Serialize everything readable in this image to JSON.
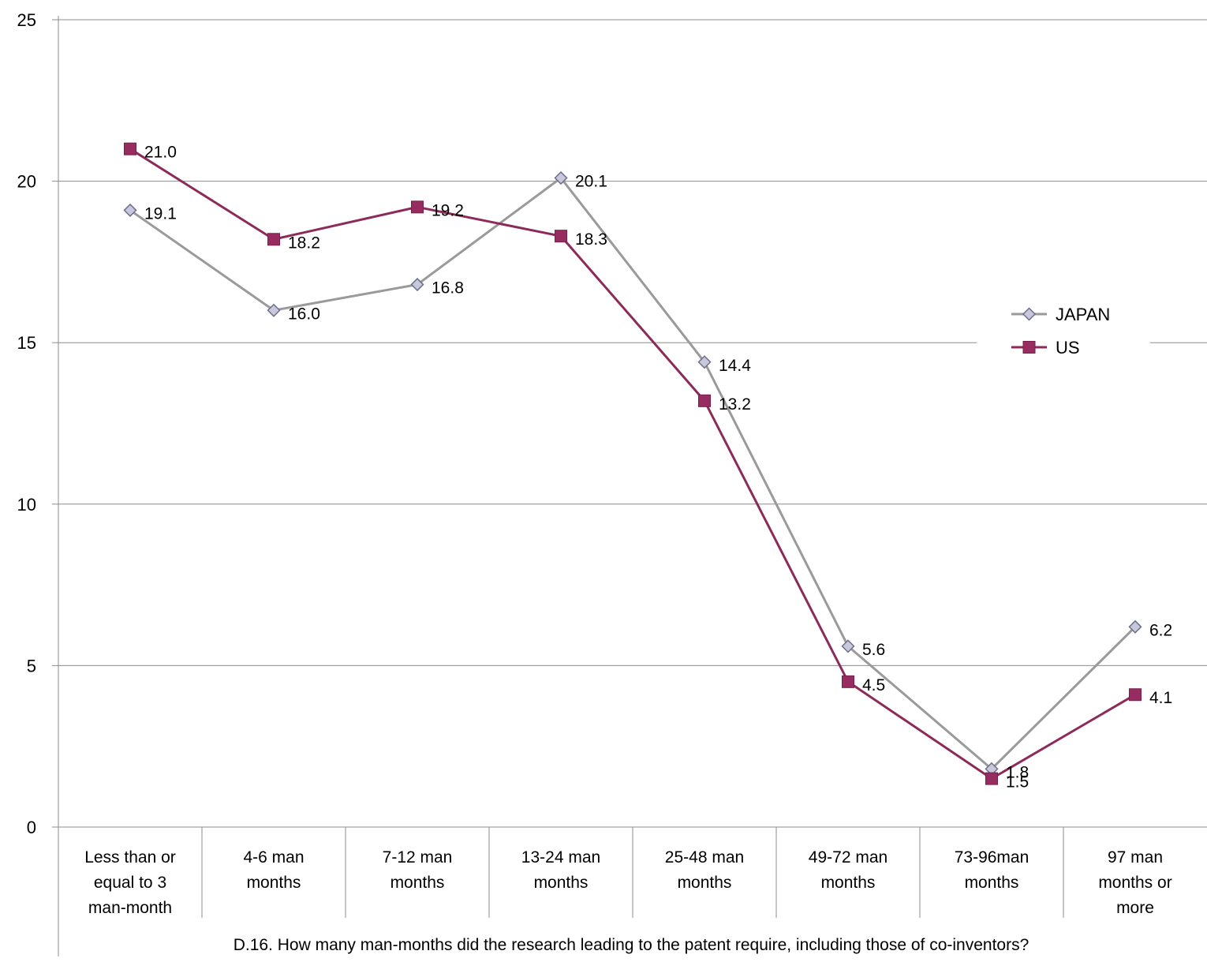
{
  "chart_data": {
    "type": "line",
    "categories": [
      [
        "Less than or",
        "equal to 3",
        "man-month"
      ],
      [
        "4-6 man",
        "months"
      ],
      [
        "7-12 man",
        "months"
      ],
      [
        "13-24 man",
        "months"
      ],
      [
        "25-48 man",
        "months"
      ],
      [
        "49-72 man",
        "months"
      ],
      [
        "73-96man",
        "months"
      ],
      [
        "97 man",
        "months or",
        "more"
      ]
    ],
    "series": [
      {
        "name": "JAPAN",
        "values": [
          19.1,
          16.0,
          16.8,
          20.1,
          14.4,
          5.6,
          1.8,
          6.2
        ],
        "labels": [
          "19.1",
          "16.0",
          "16.8",
          "20.1",
          "14.4",
          "5.6",
          "1.8",
          "6.2"
        ],
        "color": "#9a9a9a",
        "marker": "diamond",
        "marker_fill": "#c8c8dc",
        "marker_stroke": "#6e6e8c"
      },
      {
        "name": "US",
        "values": [
          21.0,
          18.2,
          19.2,
          18.3,
          13.2,
          4.5,
          1.5,
          4.1
        ],
        "labels": [
          "21.0",
          "18.2",
          "19.2",
          "18.3",
          "13.2",
          "4.5",
          "1.5",
          "4.1"
        ],
        "color": "#8c2a5a",
        "marker": "square",
        "marker_fill": "#962c60",
        "marker_stroke": "#7a1f4c"
      }
    ],
    "yticks": [
      "0",
      "5",
      "10",
      "15",
      "20",
      "25"
    ],
    "ylim": [
      0,
      25
    ],
    "xlabel": "D.16. How many man-months did the research leading to the patent require, including those of co-inventors?",
    "ylabel": "",
    "grid": true,
    "legend": "right"
  }
}
